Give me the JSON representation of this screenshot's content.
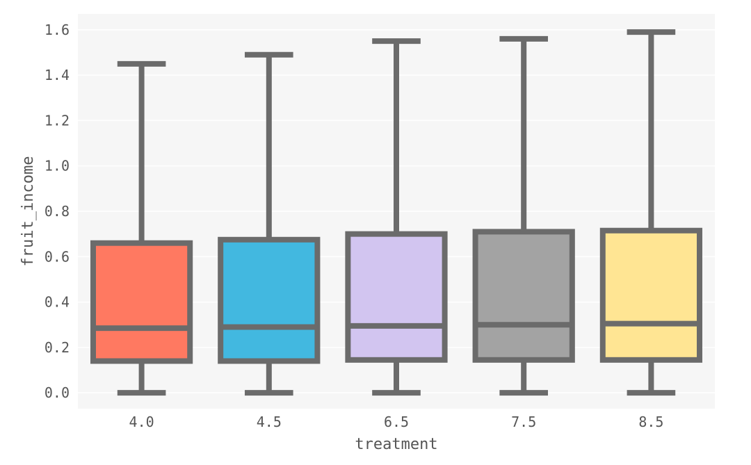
{
  "chart_data": {
    "type": "box",
    "title": "",
    "xlabel": "treatment",
    "ylabel": "fruit_income",
    "categories": [
      "4.0",
      "4.5",
      "6.5",
      "7.5",
      "8.5"
    ],
    "boxes": [
      {
        "category": "4.0",
        "whisker_low": 0.0,
        "q1": 0.14,
        "median": 0.285,
        "q3": 0.66,
        "whisker_high": 1.45,
        "color": "#FF7961"
      },
      {
        "category": "4.5",
        "whisker_low": 0.0,
        "q1": 0.14,
        "median": 0.29,
        "q3": 0.675,
        "whisker_high": 1.49,
        "color": "#42B8E0"
      },
      {
        "category": "6.5",
        "whisker_low": 0.0,
        "q1": 0.145,
        "median": 0.295,
        "q3": 0.7,
        "whisker_high": 1.55,
        "color": "#D2C5F0"
      },
      {
        "category": "7.5",
        "whisker_low": 0.0,
        "q1": 0.145,
        "median": 0.3,
        "q3": 0.71,
        "whisker_high": 1.56,
        "color": "#A3A3A3"
      },
      {
        "category": "8.5",
        "whisker_low": 0.0,
        "q1": 0.145,
        "median": 0.305,
        "q3": 0.715,
        "whisker_high": 1.59,
        "color": "#FFE593"
      }
    ],
    "ylim": [
      -0.07,
      1.67
    ],
    "yticks": [
      "0.0",
      "0.2",
      "0.4",
      "0.6",
      "0.8",
      "1.0",
      "1.2",
      "1.4",
      "1.6"
    ],
    "grid": true,
    "line_color": "#6B6B6B",
    "plot_background": "#F6F6F6"
  }
}
